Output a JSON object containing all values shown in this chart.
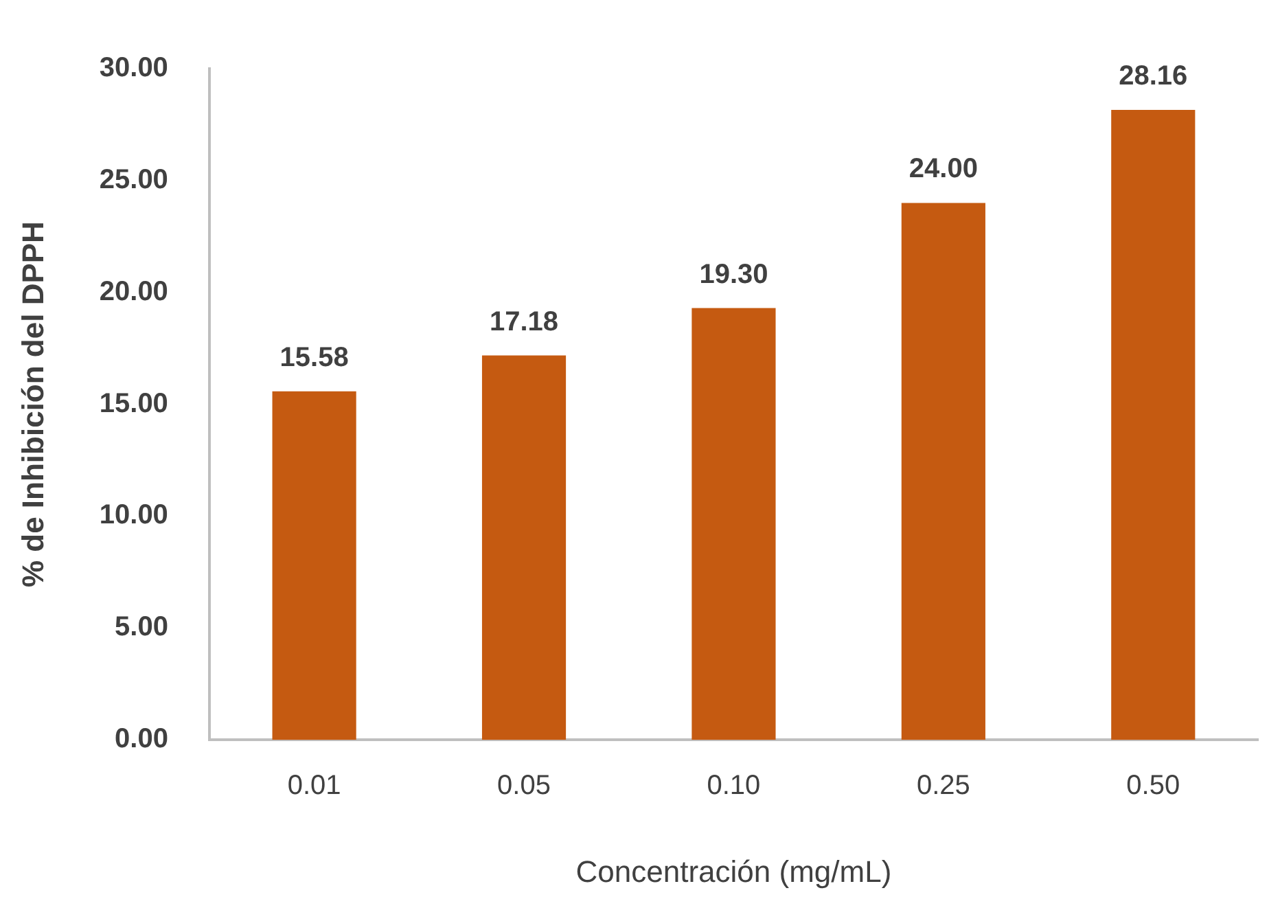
{
  "chart_data": {
    "type": "bar",
    "xlabel": "Concentración (mg/mL)",
    "ylabel": "% de Inhibición del DPPH",
    "categories": [
      "0.01",
      "0.05",
      "0.10",
      "0.25",
      "0.50"
    ],
    "values": [
      15.58,
      17.18,
      19.3,
      24,
      28.16
    ],
    "value_labels": [
      "15.58",
      "17.18",
      "19.30",
      "24.00",
      "28.16"
    ],
    "color": "#c55a11",
    "ylim": [
      0,
      30
    ],
    "yticks": [
      {
        "value": 0,
        "label": "0.00"
      },
      {
        "value": 5,
        "label": "5.00"
      },
      {
        "value": 10,
        "label": "10.00"
      },
      {
        "value": 15,
        "label": "15.00"
      },
      {
        "value": 20,
        "label": "20.00"
      },
      {
        "value": 25,
        "label": "25.00"
      },
      {
        "value": 30,
        "label": "30.00"
      }
    ],
    "grid": false,
    "legend": false
  }
}
